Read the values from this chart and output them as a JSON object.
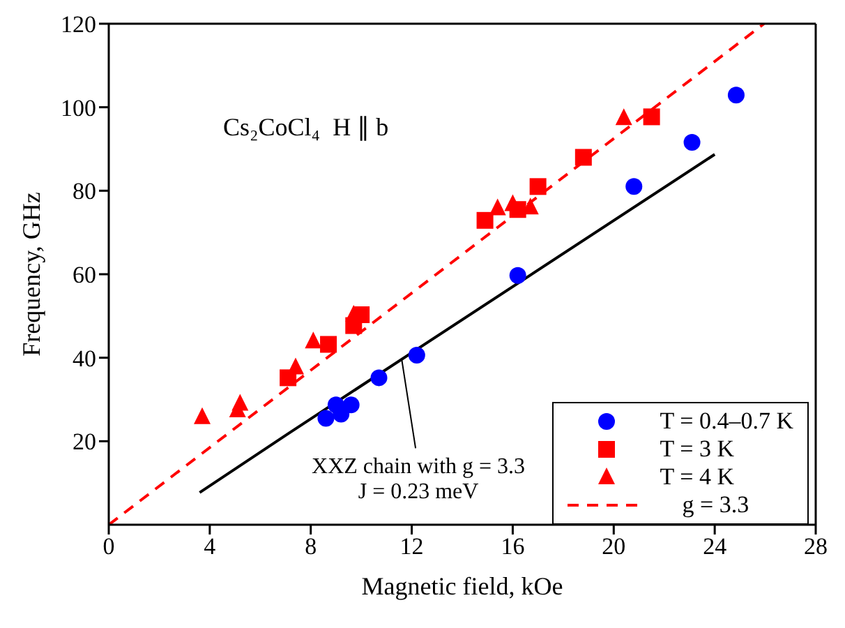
{
  "chart_data": {
    "type": "scatter",
    "xlabel": "Magnetic field, kOe",
    "ylabel": "Frequency, GHz",
    "xlim": [
      0,
      28
    ],
    "ylim": [
      0,
      120
    ],
    "xticks": [
      0,
      4,
      8,
      12,
      16,
      20,
      24,
      28
    ],
    "yticks": [
      20,
      40,
      60,
      80,
      100,
      120
    ],
    "legend": "bottom right",
    "annotations": [
      "Cs₂CoCl₄  H ∥ b",
      {
        "text": "XXZ chain with g = 3.3\nJ = 0.23 meV",
        "x": 11.6,
        "y": 39.7
      }
    ],
    "series": [
      {
        "type": "line",
        "color": "#000000",
        "line_style": "solid",
        "marker": "none",
        "x": [
          3.6,
          7.1,
          24.0
        ],
        "values": [
          7.7,
          21.8,
          88.7
        ]
      },
      {
        "type": "line",
        "name": "g = 3.3",
        "color": "#ff0000",
        "line_style": "dashed",
        "marker": "none",
        "x": [
          0,
          25.95
        ],
        "values": [
          0,
          120
        ]
      },
      {
        "name": "T = 0.4–0.7 K",
        "color": "#0000ff",
        "marker": "circle",
        "x": [
          8.6,
          9.0,
          9.2,
          9.6,
          10.7,
          12.2,
          16.2,
          20.8,
          23.1,
          24.85
        ],
        "values": [
          25.5,
          28.7,
          26.5,
          28.7,
          35.2,
          40.6,
          59.7,
          81,
          91.6,
          102.9
        ]
      },
      {
        "name": "T = 3 K",
        "color": "#ff0000",
        "marker": "square",
        "x": [
          7.1,
          8.7,
          9.7,
          10.0,
          14.9,
          16.2,
          17.0,
          18.8,
          21.5
        ],
        "values": [
          35.2,
          43.2,
          47.7,
          50.3,
          72.9,
          75.5,
          81,
          88,
          97.7
        ]
      },
      {
        "name": "T = 4 K",
        "color": "#ff0000",
        "marker": "triangle",
        "x": [
          3.7,
          5.1,
          5.2,
          7.4,
          8.1,
          9.7,
          15.4,
          16.0,
          16.7,
          20.4
        ],
        "values": [
          25.8,
          27.4,
          29,
          37.7,
          43.9,
          50.3,
          75.8,
          76.8,
          76,
          97.4
        ]
      }
    ]
  }
}
